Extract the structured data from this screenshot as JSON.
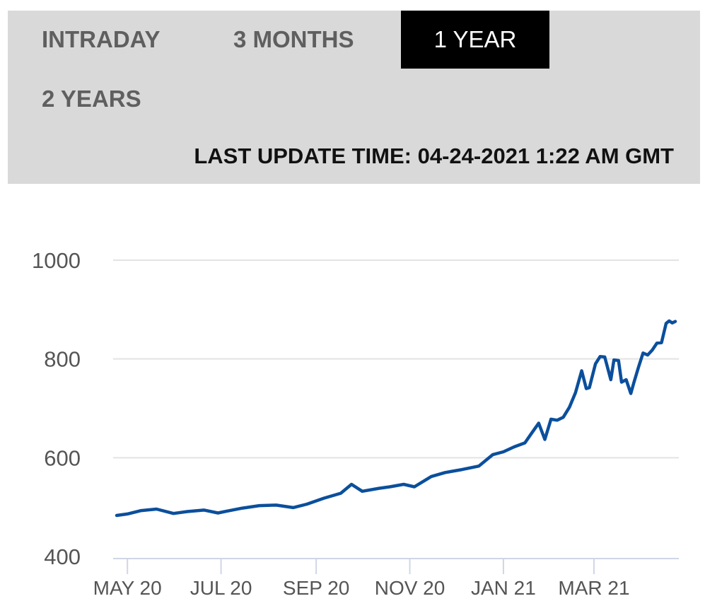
{
  "tabs": [
    {
      "label": "INTRADAY",
      "active": false
    },
    {
      "label": "3 MONTHS",
      "active": false
    },
    {
      "label": "1 YEAR",
      "active": true
    },
    {
      "label": "2 YEARS",
      "active": false
    }
  ],
  "last_update": "LAST UPDATE TIME: 04-24-2021 1:22 AM GMT",
  "colors": {
    "panel_bg": "#d9d9d9",
    "active_tab_bg": "#000000",
    "active_tab_text": "#ffffff",
    "tab_text": "#5f5f5f",
    "line": "#0b4f9c",
    "grid": "#e3e3e3",
    "axis_text": "#555555"
  },
  "chart_data": {
    "type": "line",
    "title": "",
    "xlabel": "",
    "ylabel": "",
    "ylim": [
      400,
      1000
    ],
    "yticks": [
      400,
      600,
      800,
      1000
    ],
    "y_tick_labels": [
      "400",
      "600",
      "800",
      "1000"
    ],
    "xlim": [
      "2020-04-24",
      "2021-04-23"
    ],
    "x_ticks": [
      "2020-05-01",
      "2020-07-01",
      "2020-09-01",
      "2020-11-01",
      "2021-01-01",
      "2021-03-01"
    ],
    "x_tick_labels": [
      "MAY 20",
      "JUL 20",
      "SEP 20",
      "NOV 20",
      "JAN 21",
      "MAR 21"
    ],
    "grid": "horizontal",
    "series": [
      {
        "x": [
          "2020-04-24",
          "2020-05-01",
          "2020-05-10",
          "2020-05-20",
          "2020-05-31",
          "2020-06-09",
          "2020-06-20",
          "2020-06-29",
          "2020-07-05",
          "2020-07-15",
          "2020-07-26",
          "2020-08-06",
          "2020-08-17",
          "2020-08-26",
          "2020-09-06",
          "2020-09-17",
          "2020-09-24",
          "2020-10-01",
          "2020-10-12",
          "2020-10-19",
          "2020-10-28",
          "2020-11-04",
          "2020-11-15",
          "2020-11-24",
          "2020-12-05",
          "2020-12-16",
          "2020-12-25",
          "2021-01-01",
          "2021-01-08",
          "2021-01-15",
          "2021-01-19",
          "2021-01-24",
          "2021-01-28",
          "2021-02-01",
          "2021-02-05",
          "2021-02-09",
          "2021-02-13",
          "2021-02-17",
          "2021-02-21",
          "2021-02-24",
          "2021-02-26",
          "2021-03-02",
          "2021-03-05",
          "2021-03-08",
          "2021-03-12",
          "2021-03-14",
          "2021-03-17",
          "2021-03-19",
          "2021-03-22",
          "2021-03-25",
          "2021-03-27",
          "2021-03-30",
          "2021-04-02",
          "2021-04-05",
          "2021-04-08",
          "2021-04-11",
          "2021-04-14",
          "2021-04-17",
          "2021-04-19",
          "2021-04-21",
          "2021-04-23"
        ],
        "values": [
          483,
          486,
          493,
          496,
          487,
          491,
          494,
          488,
          492,
          498,
          503,
          504,
          499,
          506,
          518,
          528,
          546,
          532,
          538,
          541,
          546,
          541,
          562,
          570,
          576,
          583,
          606,
          612,
          622,
          630,
          648,
          670,
          637,
          678,
          676,
          682,
          702,
          732,
          776,
          740,
          742,
          790,
          805,
          804,
          758,
          798,
          797,
          753,
          758,
          730,
          752,
          783,
          812,
          808,
          818,
          832,
          833,
          872,
          877,
          873,
          876
        ]
      }
    ]
  }
}
